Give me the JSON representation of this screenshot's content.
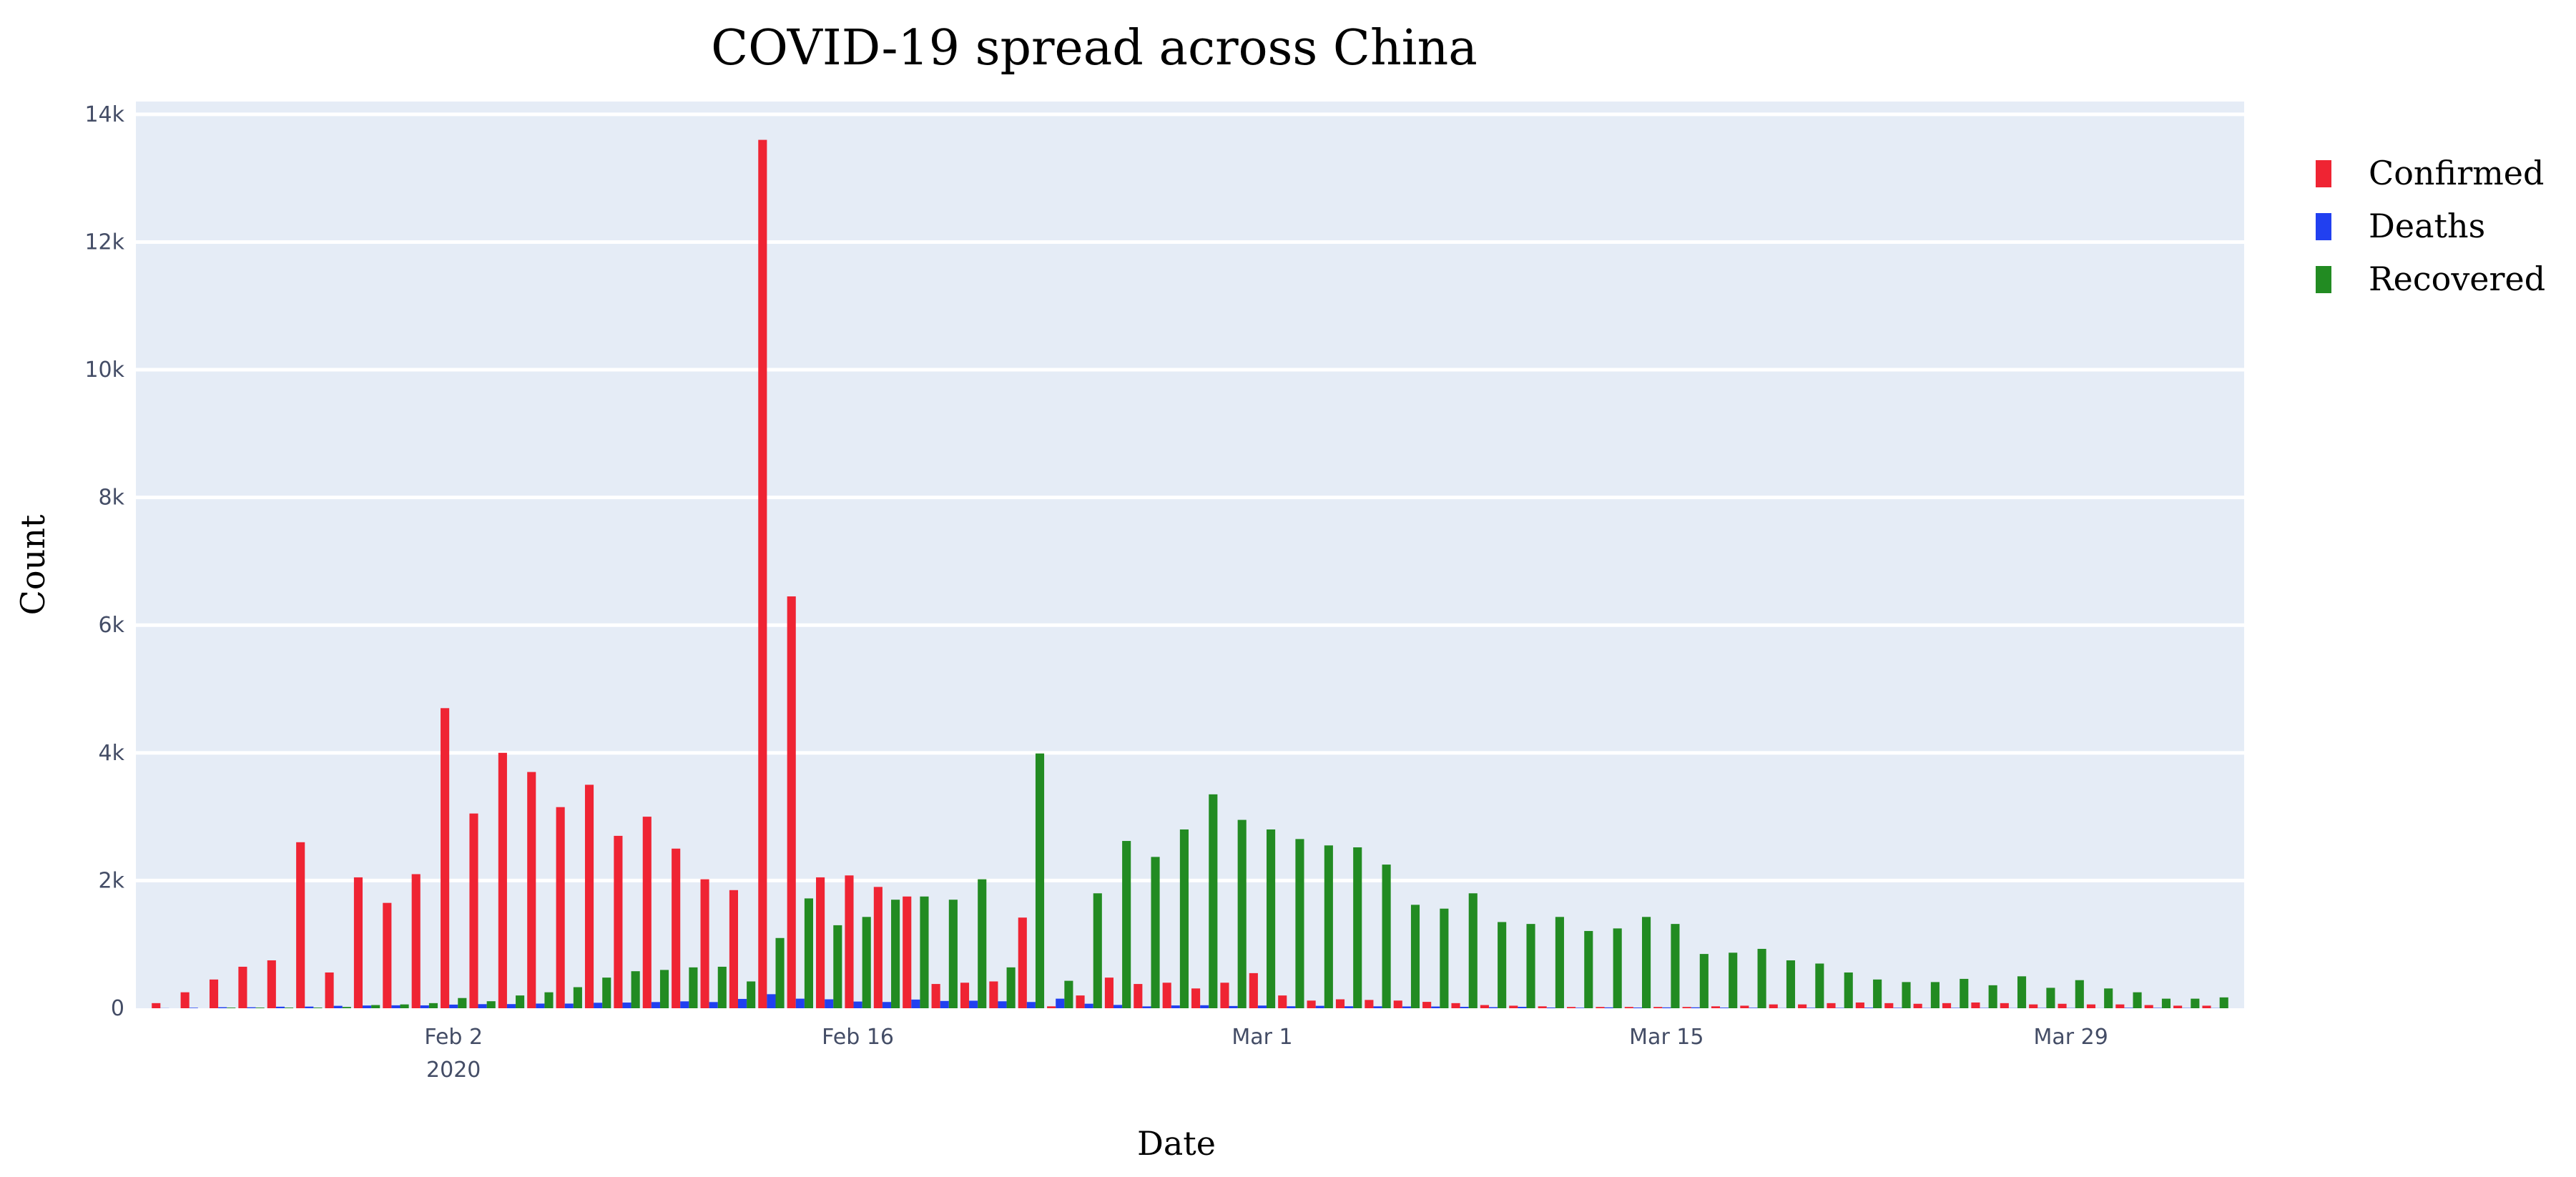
{
  "chart_data": {
    "type": "bar",
    "title": "COVID-19 spread across China",
    "xlabel": "Date",
    "ylabel": "Count",
    "ylim": [
      0,
      14200
    ],
    "xlim": [
      "2020-01-22",
      "2020-04-04"
    ],
    "grid": true,
    "legend_position": "top-right",
    "y_ticks": [
      {
        "value": 0,
        "label": "0"
      },
      {
        "value": 2000,
        "label": "2k"
      },
      {
        "value": 4000,
        "label": "4k"
      },
      {
        "value": 6000,
        "label": "6k"
      },
      {
        "value": 8000,
        "label": "8k"
      },
      {
        "value": 10000,
        "label": "10k"
      },
      {
        "value": 12000,
        "label": "12k"
      },
      {
        "value": 14000,
        "label": "14k"
      }
    ],
    "x_ticks": [
      {
        "date": "2020-02-02",
        "label": "Feb 2",
        "sublabel": "2020"
      },
      {
        "date": "2020-02-16",
        "label": "Feb 16",
        "sublabel": ""
      },
      {
        "date": "2020-03-01",
        "label": "Mar 1",
        "sublabel": ""
      },
      {
        "date": "2020-03-15",
        "label": "Mar 15",
        "sublabel": ""
      },
      {
        "date": "2020-03-29",
        "label": "Mar 29",
        "sublabel": ""
      }
    ],
    "x": [
      "2020-01-23",
      "2020-01-24",
      "2020-01-25",
      "2020-01-26",
      "2020-01-27",
      "2020-01-28",
      "2020-01-29",
      "2020-01-30",
      "2020-01-31",
      "2020-02-01",
      "2020-02-02",
      "2020-02-03",
      "2020-02-04",
      "2020-02-05",
      "2020-02-06",
      "2020-02-07",
      "2020-02-08",
      "2020-02-09",
      "2020-02-10",
      "2020-02-11",
      "2020-02-12",
      "2020-02-13",
      "2020-02-14",
      "2020-02-15",
      "2020-02-16",
      "2020-02-17",
      "2020-02-18",
      "2020-02-19",
      "2020-02-20",
      "2020-02-21",
      "2020-02-22",
      "2020-02-23",
      "2020-02-24",
      "2020-02-25",
      "2020-02-26",
      "2020-02-27",
      "2020-02-28",
      "2020-02-29",
      "2020-03-01",
      "2020-03-02",
      "2020-03-03",
      "2020-03-04",
      "2020-03-05",
      "2020-03-06",
      "2020-03-07",
      "2020-03-08",
      "2020-03-09",
      "2020-03-10",
      "2020-03-11",
      "2020-03-12",
      "2020-03-13",
      "2020-03-14",
      "2020-03-15",
      "2020-03-16",
      "2020-03-17",
      "2020-03-18",
      "2020-03-19",
      "2020-03-20",
      "2020-03-21",
      "2020-03-22",
      "2020-03-23",
      "2020-03-24",
      "2020-03-25",
      "2020-03-26",
      "2020-03-27",
      "2020-03-28",
      "2020-03-29",
      "2020-03-30",
      "2020-03-31",
      "2020-04-01",
      "2020-04-02",
      "2020-04-03"
    ],
    "series": [
      {
        "name": "Confirmed",
        "color": "#ef2433",
        "values": [
          80,
          250,
          450,
          650,
          750,
          2600,
          560,
          2050,
          1650,
          2100,
          4700,
          3050,
          4000,
          3700,
          3150,
          3500,
          2700,
          3000,
          2500,
          2020,
          1850,
          13600,
          6450,
          2050,
          2080,
          1900,
          1750,
          380,
          400,
          420,
          1420,
          30,
          200,
          480,
          380,
          400,
          310,
          400,
          550,
          200,
          120,
          140,
          130,
          120,
          100,
          80,
          50,
          40,
          30,
          20,
          20,
          20,
          20,
          20,
          30,
          40,
          60,
          60,
          80,
          90,
          80,
          70,
          80,
          90,
          80,
          60,
          70,
          60,
          60,
          50,
          40,
          40
        ]
      },
      {
        "name": "Deaths",
        "color": "#2140f0",
        "values": [
          2,
          8,
          16,
          15,
          24,
          26,
          38,
          43,
          46,
          45,
          57,
          64,
          65,
          73,
          73,
          86,
          89,
          97,
          108,
          97,
          146,
          220,
          150,
          140,
          105,
          98,
          136,
          114,
          118,
          109,
          98,
          150,
          71,
          52,
          29,
          44,
          47,
          35,
          42,
          31,
          38,
          31,
          30,
          28,
          27,
          22,
          17,
          22,
          11,
          8,
          13,
          11,
          13,
          14,
          10,
          8,
          3,
          7,
          6,
          9,
          7,
          4,
          6,
          5,
          3,
          5,
          4,
          1,
          7,
          6,
          4,
          3
        ]
      },
      {
        "name": "Recovered",
        "color": "#228b22",
        "values": [
          0,
          0,
          10,
          10,
          10,
          10,
          20,
          50,
          60,
          80,
          160,
          110,
          200,
          250,
          330,
          480,
          580,
          600,
          640,
          650,
          420,
          1100,
          1720,
          1300,
          1430,
          1700,
          1750,
          1700,
          2020,
          640,
          3990,
          430,
          1800,
          2620,
          2370,
          2800,
          3350,
          2950,
          2800,
          2650,
          2550,
          2520,
          2250,
          1620,
          1560,
          1800,
          1350,
          1320,
          1430,
          1210,
          1250,
          1430,
          1320,
          850,
          870,
          930,
          750,
          700,
          560,
          450,
          410,
          410,
          460,
          360,
          500,
          320,
          440,
          310,
          250,
          150,
          150,
          170
        ]
      }
    ]
  }
}
